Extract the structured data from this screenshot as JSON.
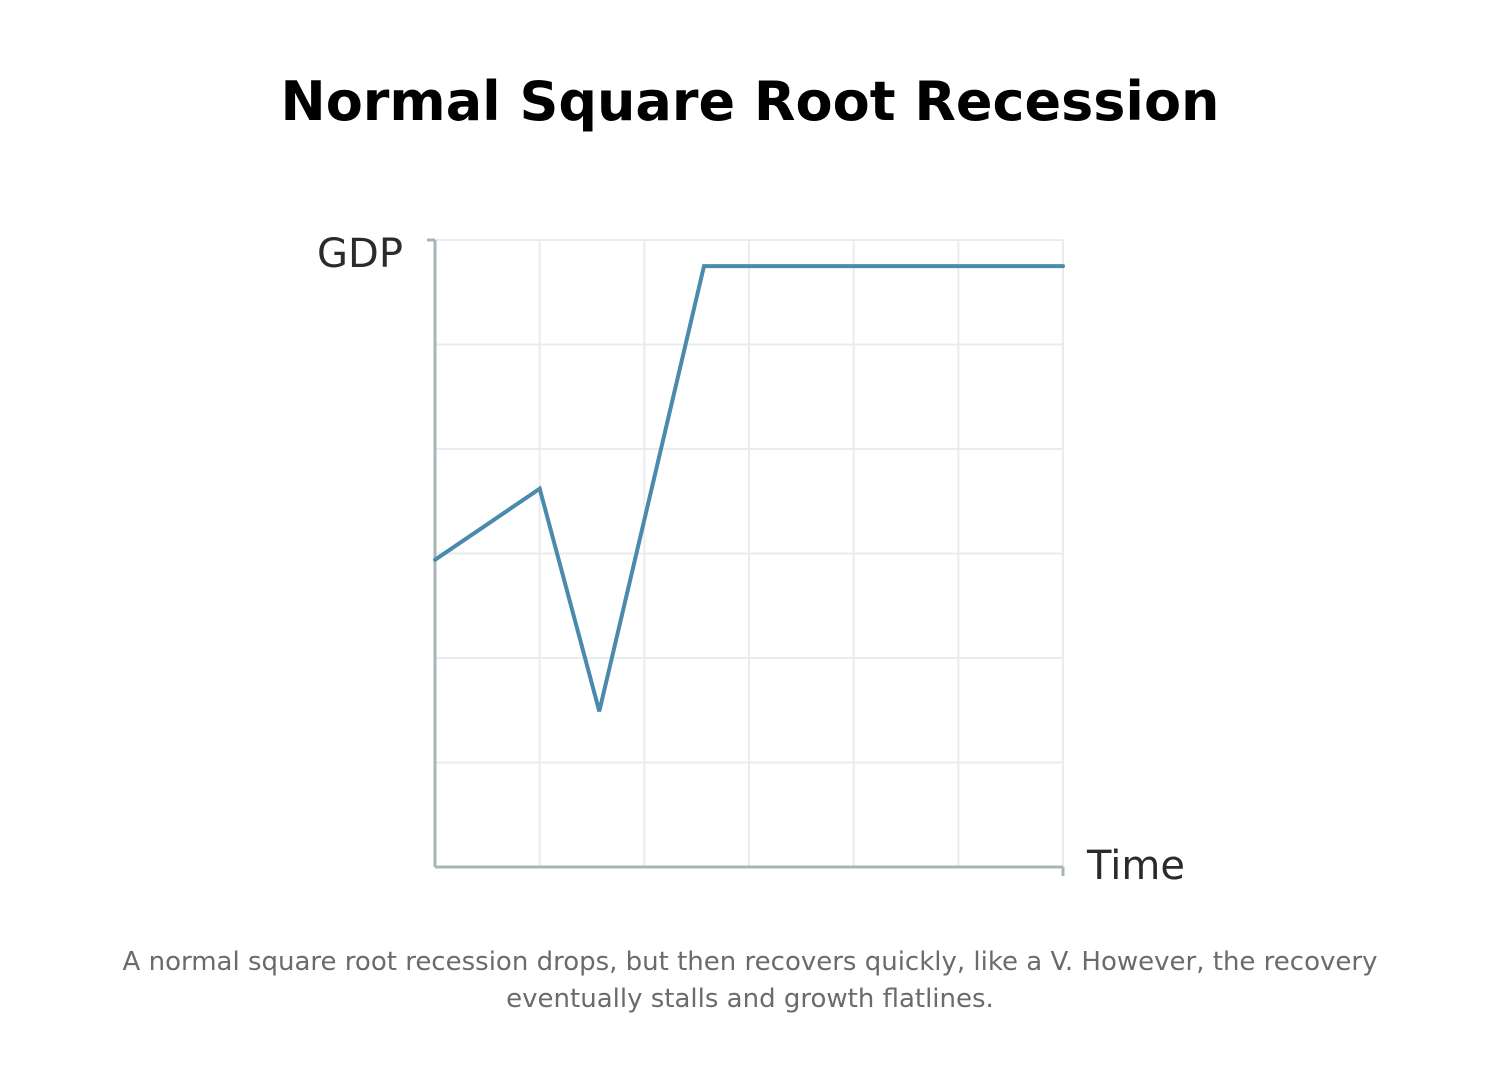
{
  "page": {
    "title": "Normal Square Root Recession",
    "caption": "A normal square root recession drops, but then recovers quickly, like a V. However, the recovery eventually stalls and growth flatlines."
  },
  "chart_data": {
    "type": "line",
    "title": "Normal Square Root Recession",
    "xlabel": "Time",
    "ylabel": "GDP",
    "xlim": [
      0,
      6
    ],
    "ylim": [
      0,
      6
    ],
    "grid": true,
    "series": [
      {
        "color": "#4a8aad",
        "x": [
          0,
          1,
          1.57,
          2.57,
          6
        ],
        "y": [
          2.94,
          3.62,
          1.49,
          5.75,
          5.75
        ]
      }
    ]
  },
  "colors": {
    "line": "#4a8aad",
    "axis": "#a9b4b9",
    "grid": "#e9ecee",
    "title": "#000000",
    "axis_label": "#2b2b2b",
    "caption": "#6b6b6b"
  }
}
